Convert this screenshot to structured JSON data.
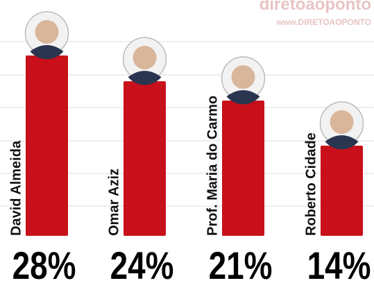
{
  "chart_data": {
    "type": "bar",
    "watermark": "diretoaoponto",
    "watermark_url": "www.DIRETOAOPONTO",
    "categories": [
      "David Almeida",
      "Omar Aziz",
      "Prof. Maria do Carmo",
      "Roberto Cidade"
    ],
    "values": [
      28,
      24,
      21,
      14
    ],
    "value_labels": [
      "28%",
      "24%",
      "21%",
      "14%"
    ],
    "color": "#c8101a"
  }
}
